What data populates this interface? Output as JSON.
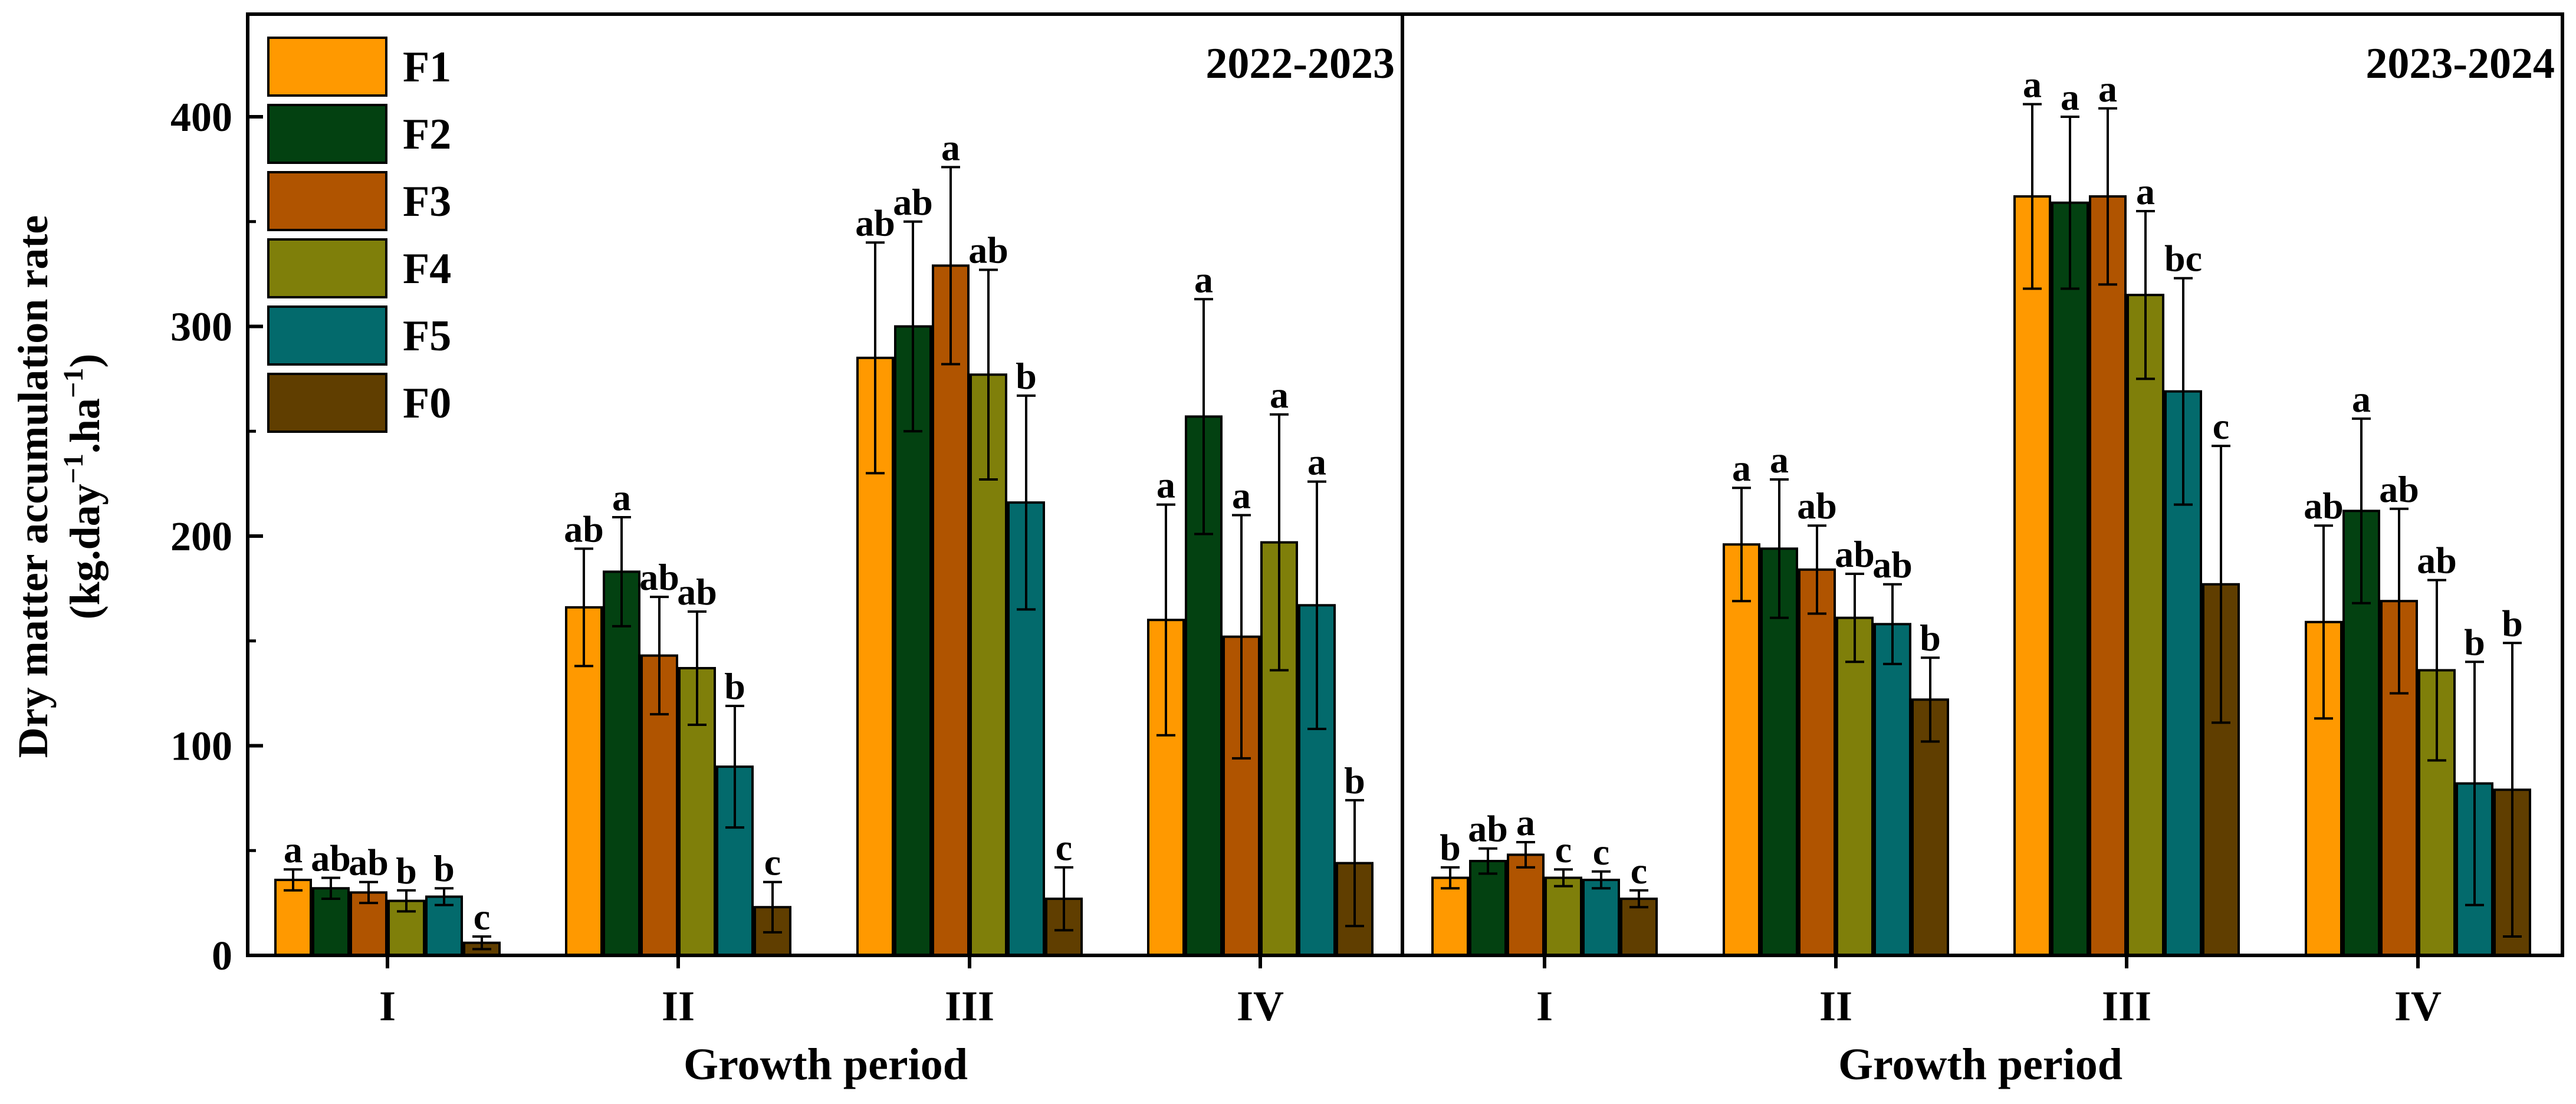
{
  "chart_data": {
    "type": "bar",
    "ylabel_line1": "Dry matter accumulation rate",
    "ylabel_prefix": "(kg.day",
    "ylabel_sup1": "−1",
    "ylabel_mid": ".ha",
    "ylabel_sup2": "−1",
    "ylabel_suffix": ")",
    "ylim": [
      0,
      450
    ],
    "yticks": [
      "0",
      "100",
      "200",
      "300",
      "400"
    ],
    "series_colors": {
      "F1": "#FF9900",
      "F2": "#034111",
      "F3": "#B05400",
      "F4": "#7F7F0A",
      "F5": "#036A6C",
      "F0": "#603E00"
    },
    "legend": [
      "F1",
      "F2",
      "F3",
      "F4",
      "F5",
      "F0"
    ],
    "panels": [
      {
        "title": "2022-2023",
        "xlabel": "Growth period",
        "categories": [
          "I",
          "II",
          "III",
          "IV"
        ],
        "series": [
          {
            "name": "F1",
            "values": [
              36,
              166,
              285,
              160
            ],
            "errors": [
              5,
              28,
              55,
              55
            ],
            "letters": [
              "a",
              "ab",
              "ab",
              "a"
            ]
          },
          {
            "name": "F2",
            "values": [
              32,
              183,
              300,
              257
            ],
            "errors": [
              5,
              26,
              50,
              56
            ],
            "letters": [
              "ab",
              "a",
              "ab",
              "a"
            ]
          },
          {
            "name": "F3",
            "values": [
              30,
              143,
              329,
              152
            ],
            "errors": [
              5,
              28,
              47,
              58
            ],
            "letters": [
              "ab",
              "ab",
              "a",
              "a"
            ]
          },
          {
            "name": "F4",
            "values": [
              26,
              137,
              277,
              197
            ],
            "errors": [
              5,
              27,
              50,
              61
            ],
            "letters": [
              "b",
              "ab",
              "ab",
              "a"
            ]
          },
          {
            "name": "F5",
            "values": [
              28,
              90,
              216,
              167
            ],
            "errors": [
              4,
              29,
              51,
              59
            ],
            "letters": [
              "b",
              "b",
              "b",
              "a"
            ]
          },
          {
            "name": "F0",
            "values": [
              6,
              23,
              27,
              44
            ],
            "errors": [
              3,
              12,
              15,
              30
            ],
            "letters": [
              "c",
              "c",
              "c",
              "b"
            ]
          }
        ]
      },
      {
        "title": "2023-2024",
        "xlabel": "Growth period",
        "categories": [
          "I",
          "II",
          "III",
          "IV"
        ],
        "series": [
          {
            "name": "F1",
            "values": [
              37,
              196,
              362,
              159
            ],
            "errors": [
              5,
              27,
              44,
              46
            ],
            "letters": [
              "b",
              "a",
              "a",
              "ab"
            ]
          },
          {
            "name": "F2",
            "values": [
              45,
              194,
              359,
              212
            ],
            "errors": [
              6,
              33,
              41,
              44
            ],
            "letters": [
              "ab",
              "a",
              "a",
              "a"
            ]
          },
          {
            "name": "F3",
            "values": [
              48,
              184,
              362,
              169
            ],
            "errors": [
              6,
              21,
              42,
              44
            ],
            "letters": [
              "a",
              "ab",
              "a",
              "ab"
            ]
          },
          {
            "name": "F4",
            "values": [
              37,
              161,
              315,
              136
            ],
            "errors": [
              4,
              21,
              40,
              43
            ],
            "letters": [
              "c",
              "ab",
              "a",
              "ab"
            ]
          },
          {
            "name": "F5",
            "values": [
              36,
              158,
              269,
              82
            ],
            "errors": [
              4,
              19,
              54,
              58
            ],
            "letters": [
              "c",
              "ab",
              "bc",
              "b"
            ]
          },
          {
            "name": "F0",
            "values": [
              27,
              122,
              177,
              79
            ],
            "errors": [
              4,
              20,
              66,
              70
            ],
            "letters": [
              "c",
              "b",
              "c",
              "b"
            ]
          }
        ]
      }
    ]
  }
}
